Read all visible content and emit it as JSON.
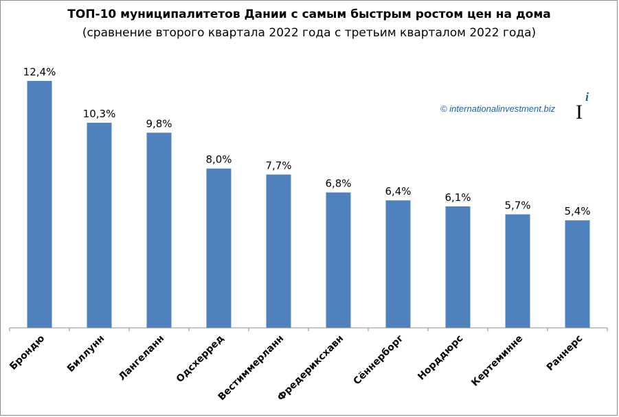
{
  "chart_data": {
    "type": "bar",
    "title": "ТОП-10 муниципалитетов Дании с самым быстрым ростом цен на дома",
    "subtitle": "(сравнение второго квартала 2022 года с третьим кварталом 2022 года)",
    "categories": [
      "Брондю",
      "Биллунн",
      "Лангеланн",
      "Одсхерред",
      "Вестиммерланн",
      "Фредериксхавн",
      "Сённерборг",
      "Норддюрс",
      "Кертеминне",
      "Раннерс"
    ],
    "values": [
      12.4,
      10.3,
      9.8,
      8.0,
      7.7,
      6.8,
      6.4,
      6.1,
      5.7,
      5.4
    ],
    "value_labels": [
      "12,4%",
      "10,3%",
      "9,8%",
      "8,0%",
      "7,7%",
      "6,8%",
      "6,4%",
      "6,1%",
      "5,7%",
      "5,4%"
    ],
    "xlabel": "",
    "ylabel": "",
    "ylim": [
      0,
      12.4
    ],
    "grid": false,
    "bar_color": "#4f81bd"
  },
  "watermark": {
    "text": "© internationalinvestment.biz",
    "color": "#1f5fa8"
  },
  "logo": {
    "letter": "I",
    "superscript": "i"
  }
}
